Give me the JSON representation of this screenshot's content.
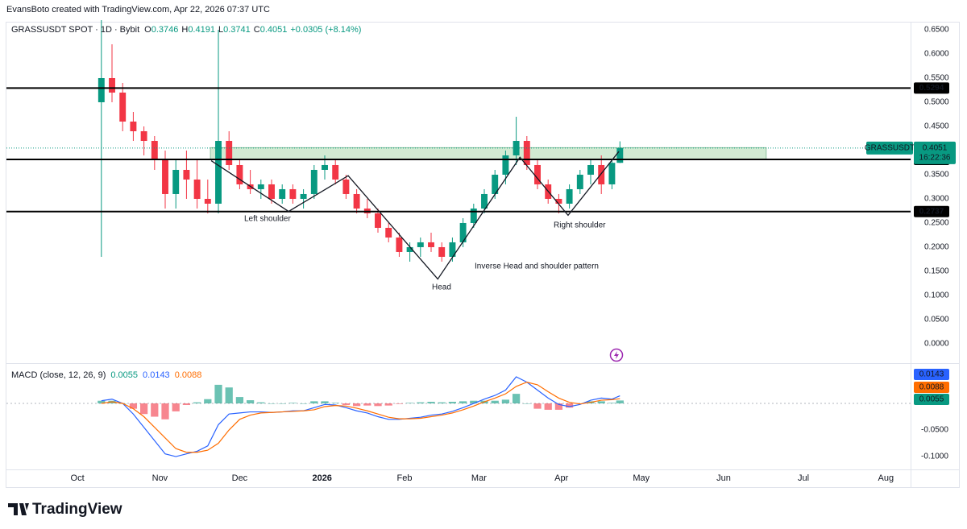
{
  "credit": "EvansBoto created with TradingView.com, Apr 22, 2026 07:37 UTC",
  "brand": "TradingView",
  "chart_data": [
    {
      "type": "candlestick",
      "title": "GRASSUSDT SPOT · 1D · Bybit",
      "ohlc_labels": [
        "O",
        "H",
        "L",
        "C"
      ],
      "change": "+0.0305 (+8.14%)",
      "symbol": "GRASSUSDT",
      "countdown": "16:22:36",
      "up_color": "#089981",
      "down_color": "#f23645",
      "x": [
        9,
        13,
        17,
        21,
        25,
        29,
        33,
        37,
        41,
        45,
        49,
        53,
        57,
        61,
        65,
        69,
        73,
        77,
        81,
        85,
        89,
        93,
        97,
        101,
        105,
        109,
        113,
        117,
        121,
        125,
        129,
        133,
        137,
        141,
        145,
        149,
        153,
        157,
        161,
        165,
        169,
        173,
        177,
        181,
        185,
        189,
        193,
        197,
        201,
        204
      ],
      "open": [
        0.5,
        0.55,
        0.52,
        0.46,
        0.44,
        0.42,
        0.38,
        0.31,
        0.36,
        0.34,
        0.3,
        0.29,
        0.42,
        0.37,
        0.33,
        0.32,
        0.33,
        0.3,
        0.32,
        0.3,
        0.31,
        0.36,
        0.37,
        0.34,
        0.31,
        0.28,
        0.27,
        0.24,
        0.22,
        0.19,
        0.2,
        0.21,
        0.2,
        0.18,
        0.21,
        0.25,
        0.28,
        0.31,
        0.35,
        0.39,
        0.42,
        0.37,
        0.33,
        0.3,
        0.29,
        0.32,
        0.35,
        0.37,
        0.33,
        0.3746
      ],
      "high": [
        0.67,
        0.62,
        0.54,
        0.48,
        0.45,
        0.43,
        0.4,
        0.38,
        0.4,
        0.38,
        0.34,
        0.65,
        0.44,
        0.38,
        0.36,
        0.34,
        0.34,
        0.33,
        0.33,
        0.32,
        0.37,
        0.39,
        0.38,
        0.35,
        0.32,
        0.3,
        0.28,
        0.25,
        0.23,
        0.21,
        0.22,
        0.23,
        0.21,
        0.22,
        0.26,
        0.29,
        0.32,
        0.36,
        0.4,
        0.47,
        0.43,
        0.38,
        0.34,
        0.31,
        0.33,
        0.36,
        0.38,
        0.39,
        0.38,
        0.4191
      ],
      "low": [
        0.18,
        0.5,
        0.44,
        0.42,
        0.39,
        0.36,
        0.28,
        0.28,
        0.3,
        0.28,
        0.27,
        0.27,
        0.36,
        0.32,
        0.31,
        0.3,
        0.29,
        0.29,
        0.29,
        0.28,
        0.3,
        0.34,
        0.33,
        0.3,
        0.27,
        0.26,
        0.23,
        0.21,
        0.18,
        0.17,
        0.18,
        0.19,
        0.17,
        0.17,
        0.2,
        0.24,
        0.27,
        0.3,
        0.33,
        0.37,
        0.36,
        0.32,
        0.29,
        0.27,
        0.28,
        0.31,
        0.33,
        0.31,
        0.32,
        0.3741
      ],
      "close": [
        0.55,
        0.52,
        0.46,
        0.44,
        0.42,
        0.38,
        0.31,
        0.36,
        0.34,
        0.3,
        0.29,
        0.42,
        0.37,
        0.33,
        0.32,
        0.33,
        0.3,
        0.32,
        0.3,
        0.31,
        0.36,
        0.37,
        0.34,
        0.31,
        0.28,
        0.27,
        0.24,
        0.22,
        0.19,
        0.2,
        0.21,
        0.2,
        0.18,
        0.21,
        0.25,
        0.28,
        0.31,
        0.35,
        0.39,
        0.42,
        0.37,
        0.33,
        0.3,
        0.29,
        0.32,
        0.35,
        0.37,
        0.33,
        0.3746,
        0.4051
      ],
      "levels": [
        0.5294,
        0.3817,
        0.2737
      ],
      "zone": {
        "x": [
          50,
          259
        ],
        "y": [
          0.3817,
          0.406
        ]
      },
      "pattern": {
        "x": [
          50.3,
          79.4,
          101.8,
          135.5,
          166.4,
          184.5,
          203.6
        ],
        "y": [
          0.379,
          0.274,
          0.348,
          0.134,
          0.386,
          0.266,
          0.398
        ]
      },
      "annotations": [
        "Left shoulder",
        "Head",
        "Inverse Head and shoulder pattern",
        "Right shoulder"
      ],
      "xlim": [
        -26.7,
        313.3
      ],
      "xticks": [
        {
          "value": 0,
          "label": "Oct"
        },
        {
          "value": 31,
          "label": "Nov"
        },
        {
          "value": 61,
          "label": "Dec"
        },
        {
          "value": 92,
          "label": "2026"
        },
        {
          "value": 123,
          "label": "Feb"
        },
        {
          "value": 151,
          "label": "Mar"
        },
        {
          "value": 182,
          "label": "Apr"
        },
        {
          "value": 212,
          "label": "May"
        },
        {
          "value": 243,
          "label": "Jun"
        },
        {
          "value": 273,
          "label": "Jul"
        },
        {
          "value": 304,
          "label": "Aug"
        }
      ],
      "ylim": [
        -0.0384,
        0.665
      ],
      "yticks": [
        {
          "value": 0,
          "label": "0.0000"
        },
        {
          "value": 0.05,
          "label": "0.0500"
        },
        {
          "value": 0.1,
          "label": "0.1000"
        },
        {
          "value": 0.15,
          "label": "0.1500"
        },
        {
          "value": 0.2,
          "label": "0.2000"
        },
        {
          "value": 0.25,
          "label": "0.2500"
        },
        {
          "value": 0.3,
          "label": "0.3000"
        },
        {
          "value": 0.35,
          "label": "0.3500"
        },
        {
          "value": 0.45,
          "label": "0.4500"
        },
        {
          "value": 0.5,
          "label": "0.5000"
        },
        {
          "value": 0.55,
          "label": "0.5500"
        },
        {
          "value": 0.6,
          "label": "0.6000"
        },
        {
          "value": 0.65,
          "label": "0.6500"
        }
      ],
      "grid": false
    },
    {
      "type": "macd",
      "title": "MACD (close, 12, 26, 9)",
      "series": [
        {
          "name": "MACD",
          "color": "#2962ff",
          "values": [
            0.005,
            0.008,
            0.0,
            -0.02,
            -0.045,
            -0.07,
            -0.095,
            -0.1,
            -0.095,
            -0.09,
            -0.08,
            -0.04,
            -0.02,
            -0.018,
            -0.016,
            -0.016,
            -0.017,
            -0.016,
            -0.014,
            -0.014,
            -0.008,
            -0.002,
            -0.003,
            -0.008,
            -0.014,
            -0.018,
            -0.025,
            -0.03,
            -0.03,
            -0.028,
            -0.026,
            -0.022,
            -0.02,
            -0.015,
            -0.008,
            0.0,
            0.008,
            0.015,
            0.025,
            0.05,
            0.04,
            0.025,
            0.01,
            -0.002,
            -0.006,
            -0.002,
            0.006,
            0.01,
            0.008,
            0.0143
          ]
        },
        {
          "name": "Signal",
          "color": "#ff6d00",
          "values": [
            0.0,
            0.003,
            0.0,
            -0.01,
            -0.025,
            -0.045,
            -0.065,
            -0.085,
            -0.092,
            -0.092,
            -0.088,
            -0.075,
            -0.05,
            -0.03,
            -0.022,
            -0.018,
            -0.017,
            -0.016,
            -0.015,
            -0.014,
            -0.012,
            -0.006,
            -0.004,
            -0.005,
            -0.009,
            -0.014,
            -0.02,
            -0.026,
            -0.029,
            -0.029,
            -0.028,
            -0.025,
            -0.022,
            -0.018,
            -0.012,
            -0.005,
            0.003,
            0.01,
            0.018,
            0.032,
            0.04,
            0.035,
            0.022,
            0.01,
            0.002,
            -0.001,
            0.002,
            0.006,
            0.007,
            0.0088
          ]
        }
      ],
      "histogram": {
        "name": "Histogram",
        "color": "#089981",
        "negative_color": "#f23645",
        "values": [
          0.005,
          0.005,
          0.0,
          -0.01,
          -0.02,
          -0.025,
          -0.03,
          -0.015,
          -0.003,
          0.002,
          0.008,
          0.035,
          0.03,
          0.012,
          0.006,
          0.002,
          0.0,
          0.0,
          0.001,
          0.0,
          0.004,
          0.004,
          0.001,
          -0.003,
          -0.005,
          -0.004,
          -0.005,
          -0.004,
          -0.001,
          0.001,
          0.002,
          0.003,
          0.002,
          0.003,
          0.004,
          0.005,
          0.005,
          0.005,
          0.007,
          0.018,
          0.0,
          -0.01,
          -0.012,
          -0.012,
          -0.008,
          -0.001,
          0.004,
          0.004,
          0.001,
          0.0055
        ]
      },
      "ylim": [
        -0.1242,
        0.0697
      ],
      "yticks": [
        {
          "value": -0.05,
          "label": "-0.0500"
        },
        {
          "value": -0.1,
          "label": "-0.1000"
        }
      ]
    }
  ]
}
